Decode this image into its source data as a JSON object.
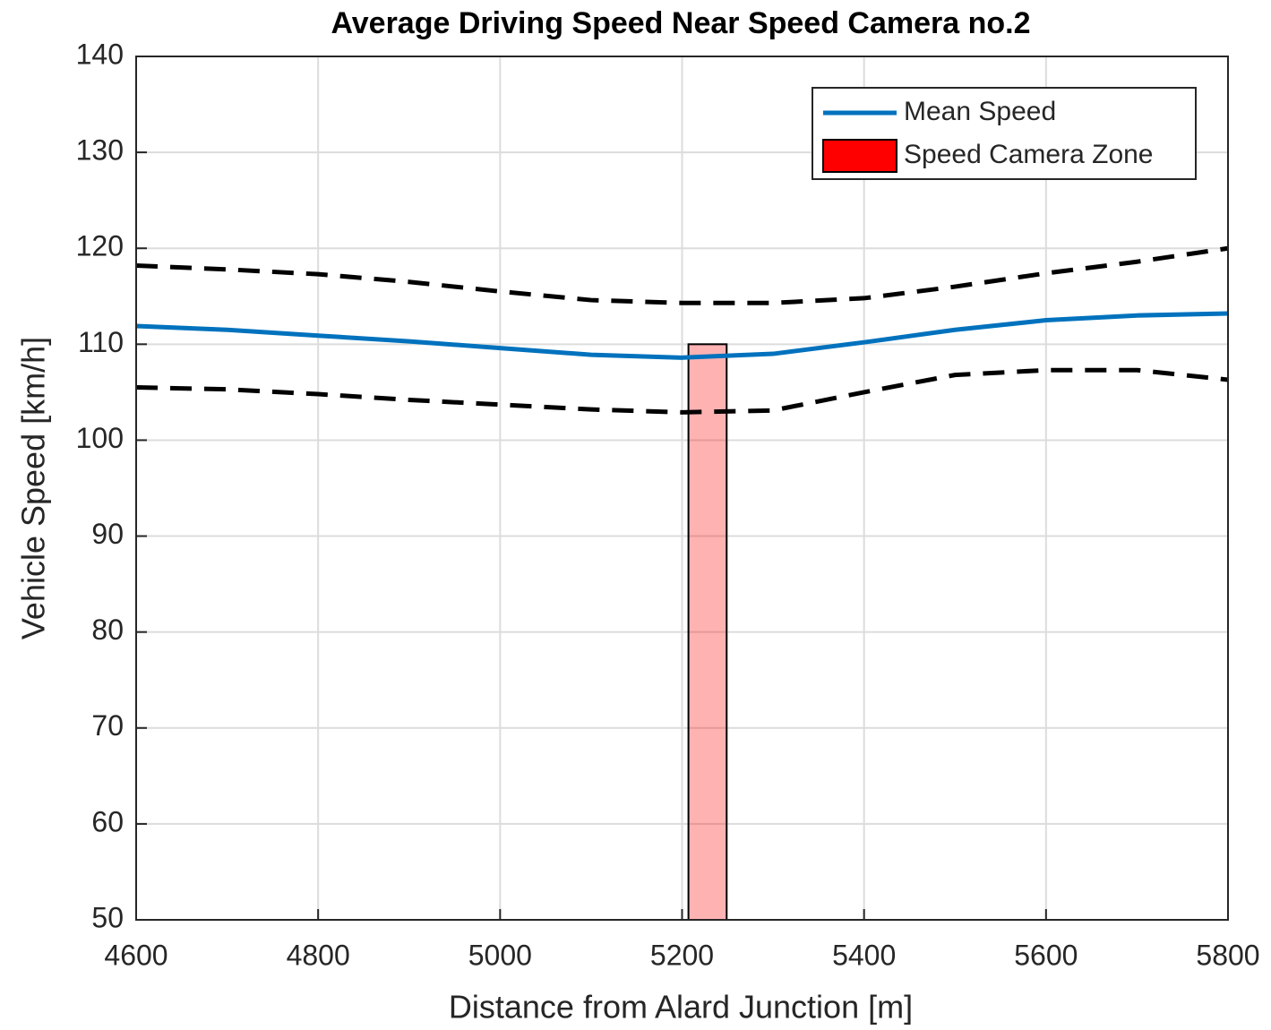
{
  "chart_data": {
    "type": "line",
    "title": "Average Driving Speed Near Speed Camera no.2",
    "x_label": "Distance from Alard Junction [m]",
    "y_label": "Vehicle Speed [km/h]",
    "x": [
      4600,
      4700,
      4800,
      4900,
      5000,
      5100,
      5200,
      5300,
      5400,
      5500,
      5600,
      5700,
      5800
    ],
    "series": [
      {
        "name": "Mean Speed",
        "color": "#0072bd",
        "style": "solid",
        "values": [
          111.9,
          111.5,
          110.9,
          110.3,
          109.6,
          108.9,
          108.6,
          109.0,
          110.2,
          111.5,
          112.5,
          113.0,
          113.2
        ]
      },
      {
        "color": "#000000",
        "style": "dashed",
        "values": [
          118.2,
          117.8,
          117.3,
          116.5,
          115.5,
          114.6,
          114.3,
          114.3,
          114.8,
          116.0,
          117.4,
          118.6,
          120.0
        ]
      },
      {
        "color": "#000000",
        "style": "dashed",
        "values": [
          105.5,
          105.3,
          104.8,
          104.2,
          103.7,
          103.2,
          102.9,
          103.1,
          105.0,
          106.8,
          107.3,
          107.3,
          106.3
        ]
      }
    ],
    "zone": {
      "name": "Speed Camera Zone",
      "color": "#ff0000",
      "x": [
        5207,
        5249
      ],
      "y": [
        50,
        110
      ]
    },
    "xlim": [
      4600,
      5800
    ],
    "ylim": [
      50,
      140
    ],
    "xticks": [
      4600,
      4800,
      5000,
      5200,
      5400,
      5600,
      5800
    ],
    "yticks": [
      50,
      60,
      70,
      80,
      90,
      100,
      110,
      120,
      130,
      140
    ],
    "grid": true,
    "legend": "upper right"
  }
}
